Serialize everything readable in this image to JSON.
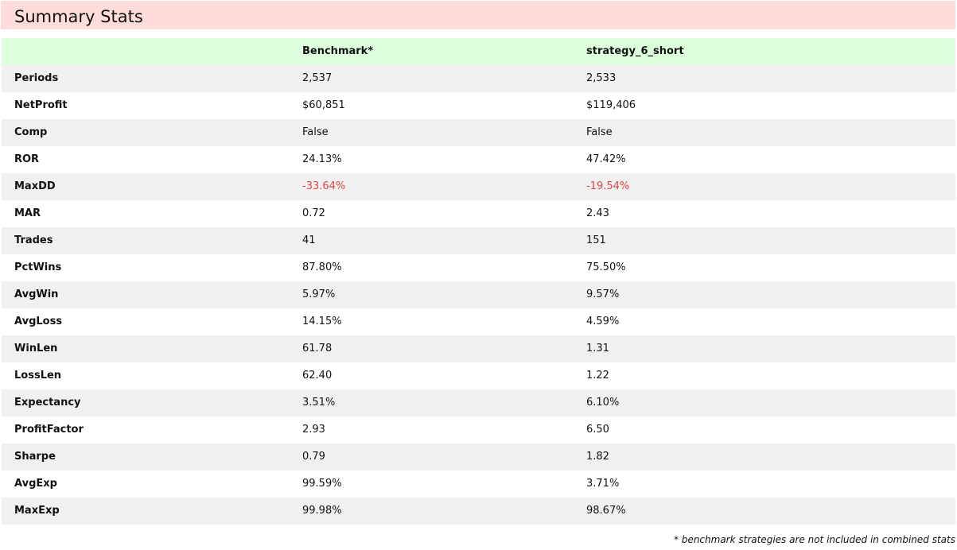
{
  "title": "Summary Stats",
  "table": {
    "headers": [
      "",
      "Benchmark*",
      "strategy_6_short"
    ],
    "rows": [
      {
        "metric": "Periods",
        "benchmark": "2,537",
        "strategy": "2,533"
      },
      {
        "metric": "NetProfit",
        "benchmark": "$60,851",
        "strategy": "$119,406"
      },
      {
        "metric": "Comp",
        "benchmark": "False",
        "strategy": "False"
      },
      {
        "metric": "ROR",
        "benchmark": "24.13%",
        "strategy": "47.42%"
      },
      {
        "metric": "MaxDD",
        "benchmark": "-33.64%",
        "strategy": "-19.54%"
      },
      {
        "metric": "MAR",
        "benchmark": "0.72",
        "strategy": "2.43"
      },
      {
        "metric": "Trades",
        "benchmark": "41",
        "strategy": "151"
      },
      {
        "metric": "PctWins",
        "benchmark": "87.80%",
        "strategy": "75.50%"
      },
      {
        "metric": "AvgWin",
        "benchmark": "5.97%",
        "strategy": "9.57%"
      },
      {
        "metric": "AvgLoss",
        "benchmark": "14.15%",
        "strategy": "4.59%"
      },
      {
        "metric": "WinLen",
        "benchmark": "61.78",
        "strategy": "1.31"
      },
      {
        "metric": "LossLen",
        "benchmark": "62.40",
        "strategy": "1.22"
      },
      {
        "metric": "Expectancy",
        "benchmark": "3.51%",
        "strategy": "6.10%"
      },
      {
        "metric": "ProfitFactor",
        "benchmark": "2.93",
        "strategy": "6.50"
      },
      {
        "metric": "Sharpe",
        "benchmark": "0.79",
        "strategy": "1.82"
      },
      {
        "metric": "AvgExp",
        "benchmark": "99.59%",
        "strategy": "3.71%"
      },
      {
        "metric": "MaxExp",
        "benchmark": "99.98%",
        "strategy": "98.67%"
      }
    ]
  },
  "footnote": "* benchmark strategies are not included in combined stats",
  "colors": {
    "title_background": "#ffdcdc",
    "header_background": "#ddffdd",
    "row_alt_background": "#f0f0f0",
    "negative_text": "#e04545"
  }
}
